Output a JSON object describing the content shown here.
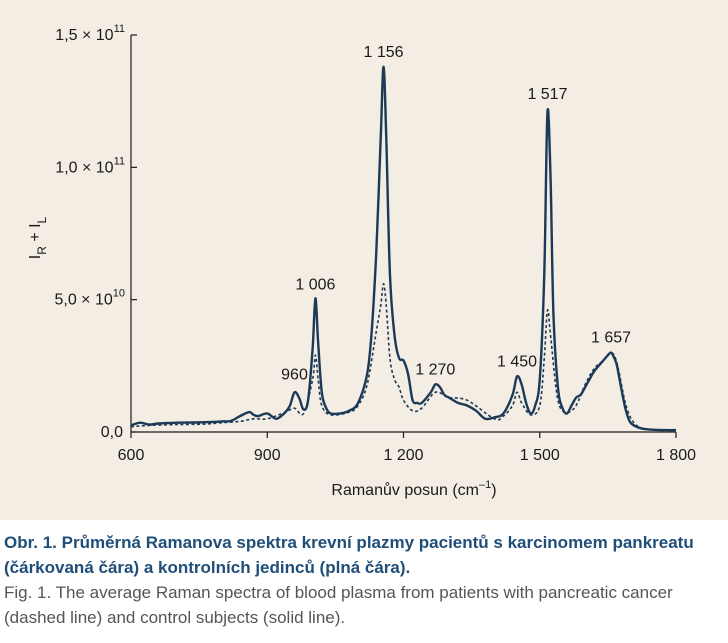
{
  "chart_data": {
    "type": "line",
    "xlabel": "Ramanův posun (cm",
    "xlabel_unit_sup": "–1",
    "xlabel_close": ")",
    "ylabel_base": "I",
    "ylabel_sub1": "R",
    "ylabel_mid": " + I",
    "ylabel_sub2": "L",
    "xlim": [
      600,
      1800
    ],
    "ylim": [
      0,
      150000000000
    ],
    "xticks": [
      {
        "value": 600,
        "label": "600"
      },
      {
        "value": 900,
        "label": "900"
      },
      {
        "value": 1200,
        "label": "1 200"
      },
      {
        "value": 1500,
        "label": "1 500"
      },
      {
        "value": 1800,
        "label": "1 800"
      }
    ],
    "yticks": [
      {
        "value": 0,
        "mantissa": "0,0",
        "exp": ""
      },
      {
        "value": 50000000000,
        "mantissa": "5,0 × 10",
        "exp": "10"
      },
      {
        "value": 100000000000,
        "mantissa": "1,0 × 10",
        "exp": "11"
      },
      {
        "value": 150000000000,
        "mantissa": "1,5 × 10",
        "exp": "11"
      }
    ],
    "peak_labels": [
      {
        "x": 960,
        "label": "960",
        "y": 16000000000
      },
      {
        "x": 1006,
        "label": "1 006",
        "y": 50000000000
      },
      {
        "x": 1156,
        "label": "1 156",
        "y": 138000000000
      },
      {
        "x": 1270,
        "label": "1 270",
        "y": 18000000000
      },
      {
        "x": 1450,
        "label": "1 450",
        "y": 21000000000
      },
      {
        "x": 1517,
        "label": "1 517",
        "y": 122000000000
      },
      {
        "x": 1657,
        "label": "1 657",
        "y": 30000000000
      }
    ],
    "series": [
      {
        "name": "kontrolní jedinci (plná čára)",
        "style": "solid",
        "x": [
          600,
          620,
          640,
          660,
          700,
          740,
          780,
          800,
          820,
          840,
          860,
          870,
          880,
          900,
          920,
          940,
          950,
          960,
          970,
          980,
          990,
          1000,
          1006,
          1012,
          1020,
          1030,
          1040,
          1060,
          1080,
          1100,
          1120,
          1130,
          1140,
          1150,
          1156,
          1162,
          1170,
          1180,
          1190,
          1200,
          1210,
          1220,
          1230,
          1240,
          1260,
          1270,
          1280,
          1290,
          1300,
          1320,
          1340,
          1360,
          1380,
          1400,
          1420,
          1440,
          1450,
          1460,
          1470,
          1480,
          1490,
          1500,
          1510,
          1517,
          1524,
          1530,
          1540,
          1550,
          1560,
          1570,
          1580,
          1590,
          1600,
          1610,
          1620,
          1640,
          1650,
          1657,
          1664,
          1670,
          1680,
          1690,
          1700,
          1720,
          1740,
          1760,
          1780,
          1800
        ],
        "y": [
          2500000000,
          3500000000,
          2800000000,
          3200000000,
          3500000000,
          3600000000,
          3800000000,
          4000000000,
          4200000000,
          6000000000,
          7500000000,
          6500000000,
          6000000000,
          7000000000,
          5000000000,
          7500000000,
          10000000000,
          15000000000,
          13000000000,
          8500000000,
          12000000000,
          32000000000,
          50500000000,
          34000000000,
          15000000000,
          9000000000,
          7000000000,
          7000000000,
          8000000000,
          11000000000,
          22000000000,
          38000000000,
          68000000000,
          112000000000,
          138000000000,
          112000000000,
          60000000000,
          37000000000,
          28000000000,
          27000000000,
          22000000000,
          12000000000,
          11000000000,
          11000000000,
          15000000000,
          18000000000,
          17000000000,
          14000000000,
          13000000000,
          11000000000,
          10000000000,
          8000000000,
          5000000000,
          5500000000,
          7000000000,
          14000000000,
          21000000000,
          18000000000,
          11000000000,
          7000000000,
          10000000000,
          20000000000,
          60000000000,
          121000000000,
          94000000000,
          45000000000,
          17000000000,
          9000000000,
          7000000000,
          10000000000,
          13000000000,
          14000000000,
          17000000000,
          20000000000,
          23000000000,
          27000000000,
          29000000000,
          30000000000,
          28000000000,
          25000000000,
          16000000000,
          8000000000,
          3500000000,
          1500000000,
          1000000000,
          800000000,
          700000000,
          700000000
        ]
      },
      {
        "name": "pacienti s karcinomem pankreatu (čárkovaná čára)",
        "style": "dashed",
        "x": [
          600,
          640,
          700,
          760,
          800,
          840,
          870,
          900,
          940,
          960,
          980,
          1000,
          1006,
          1012,
          1020,
          1040,
          1080,
          1100,
          1120,
          1140,
          1150,
          1156,
          1162,
          1170,
          1180,
          1190,
          1200,
          1220,
          1240,
          1270,
          1300,
          1340,
          1400,
          1420,
          1440,
          1450,
          1460,
          1480,
          1500,
          1510,
          1517,
          1524,
          1540,
          1560,
          1580,
          1600,
          1620,
          1640,
          1657,
          1670,
          1690,
          1710,
          1740,
          1800
        ],
        "y": [
          2000000000,
          2500000000,
          2800000000,
          3000000000,
          3500000000,
          4000000000,
          5000000000,
          5000000000,
          7500000000,
          9000000000,
          7000000000,
          20000000000,
          29000000000,
          20000000000,
          10000000000,
          6500000000,
          7500000000,
          10000000000,
          18000000000,
          38000000000,
          48000000000,
          56000000000,
          48000000000,
          28000000000,
          20000000000,
          17000000000,
          12000000000,
          8000000000,
          9000000000,
          15000000000,
          13000000000,
          12000000000,
          5000000000,
          6000000000,
          10000000000,
          15000000000,
          11000000000,
          6500000000,
          10000000000,
          28000000000,
          46000000000,
          36000000000,
          12000000000,
          7500000000,
          10000000000,
          18000000000,
          24000000000,
          27000000000,
          30000000000,
          26000000000,
          10000000000,
          3000000000,
          1000000000,
          700000000
        ]
      }
    ]
  },
  "caption": {
    "cz": "Obr. 1. Průměrná Ramanova spektra krevní plazmy pacientů s karcinomem pankreatu (čárkovaná čára) a kontrolních jedinců (plná čára).",
    "en": "Fig. 1. The average Raman spectra of blood plasma from patients with pancreatic cancer (dashed line) and control subjects (solid line)."
  },
  "colors": {
    "panel": "#f4ede3",
    "line": "#1b3a57",
    "caption_cz": "#1f4e79",
    "caption_en": "#555555"
  }
}
